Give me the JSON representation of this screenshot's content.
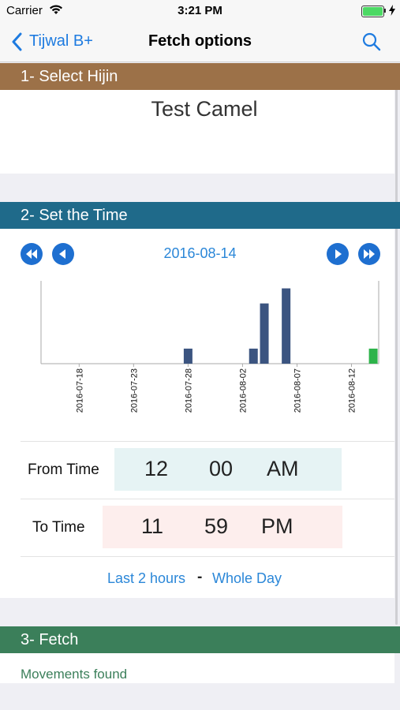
{
  "status": {
    "carrier": "Carrier",
    "time": "3:21 PM"
  },
  "nav": {
    "back_label": "Tijwal B+",
    "title": "Fetch options"
  },
  "section1": {
    "title": "1- Select Hijin",
    "selected": "Test Camel"
  },
  "section2": {
    "title": "2- Set the Time",
    "date": "2016-08-14"
  },
  "chart_data": {
    "type": "bar",
    "x_ticks": [
      "2016-07-18",
      "2016-07-23",
      "2016-07-28",
      "2016-08-02",
      "2016-08-07",
      "2016-08-12"
    ],
    "series": [
      {
        "values": [
          {
            "x": "2016-07-28",
            "y": 1
          },
          {
            "x": "2016-08-03",
            "y": 1
          },
          {
            "x": "2016-08-04",
            "y": 4
          },
          {
            "x": "2016-08-06",
            "y": 5
          }
        ],
        "color": "#3b5480"
      },
      {
        "values": [
          {
            "x": "2016-08-14",
            "y": 1
          }
        ],
        "color": "#2db34a"
      }
    ],
    "ylim": [
      0,
      5.5
    ],
    "grid": false
  },
  "from_time": {
    "label": "From Time",
    "hour": "12",
    "minute": "00",
    "ampm": "AM"
  },
  "to_time": {
    "label": "To Time",
    "hour": "11",
    "minute": "59",
    "ampm": "PM"
  },
  "quick": {
    "last2": "Last 2 hours",
    "sep": "-",
    "whole": "Whole Day"
  },
  "section3": {
    "title": "3- Fetch",
    "status": "Movements found"
  },
  "colors": {
    "sec1": "#9c7148",
    "sec2": "#1f6a8a",
    "sec3": "#3b7f5a",
    "accent": "#2b87d8"
  }
}
